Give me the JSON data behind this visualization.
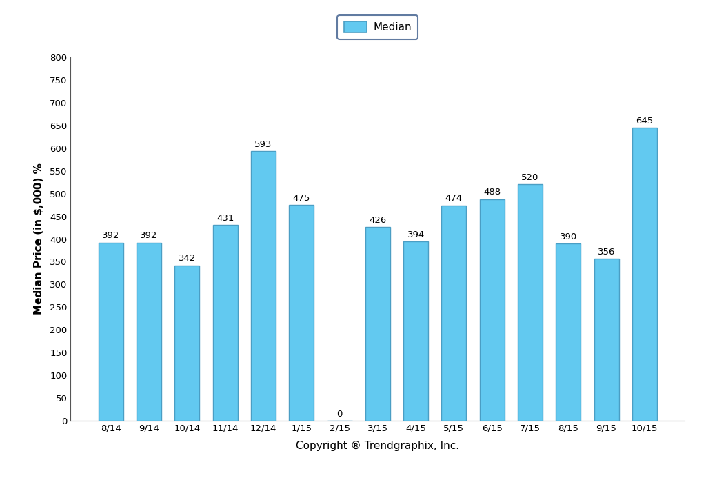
{
  "categories": [
    "8/14",
    "9/14",
    "10/14",
    "11/14",
    "12/14",
    "1/15",
    "2/15",
    "3/15",
    "4/15",
    "5/15",
    "6/15",
    "7/15",
    "8/15",
    "9/15",
    "10/15"
  ],
  "values": [
    392,
    392,
    342,
    431,
    593,
    475,
    0,
    426,
    394,
    474,
    488,
    520,
    390,
    356,
    645
  ],
  "bar_color": "#62C9F0",
  "bar_edge_color": "#4A9EC4",
  "ylabel": "Median Price (in $,000) %",
  "xlabel": "Copyright ® Trendgraphix, Inc.",
  "ylim": [
    0,
    800
  ],
  "yticks": [
    0,
    50,
    100,
    150,
    200,
    250,
    300,
    350,
    400,
    450,
    500,
    550,
    600,
    650,
    700,
    750,
    800
  ],
  "legend_label": "Median",
  "legend_facecolor": "#62C9F0",
  "legend_edgecolor": "#4A9EC4",
  "background_color": "#ffffff",
  "bar_width": 0.65,
  "annotation_fontsize": 9.5,
  "axis_label_fontsize": 11,
  "tick_fontsize": 9.5,
  "legend_fontsize": 11,
  "legend_box_edgecolor": "#3A5A8A"
}
